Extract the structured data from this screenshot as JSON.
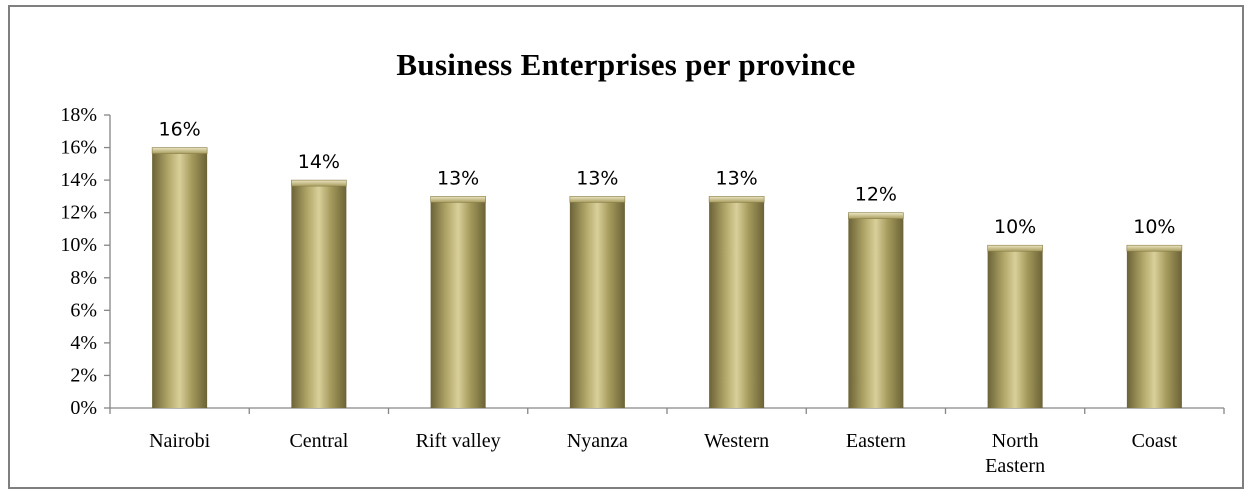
{
  "chart_data": {
    "type": "bar",
    "title": "Business Enterprises per province",
    "categories": [
      "Nairobi",
      "Central",
      "Rift valley",
      "Nyanza",
      "Western",
      "Eastern",
      "North Eastern",
      "Coast"
    ],
    "category_lines": [
      [
        "Nairobi"
      ],
      [
        "Central"
      ],
      [
        "Rift valley"
      ],
      [
        "Nyanza"
      ],
      [
        "Western"
      ],
      [
        "Eastern"
      ],
      [
        "North",
        "Eastern"
      ],
      [
        "Coast"
      ]
    ],
    "values": [
      16,
      14,
      13,
      13,
      13,
      12,
      10,
      10
    ],
    "data_labels": [
      "16%",
      "14%",
      "13%",
      "13%",
      "13%",
      "12%",
      "10%",
      "10%"
    ],
    "ylim": [
      0,
      18
    ],
    "yticks": [
      0,
      2,
      4,
      6,
      8,
      10,
      12,
      14,
      16,
      18
    ],
    "ytick_labels": [
      "0%",
      "2%",
      "4%",
      "6%",
      "8%",
      "10%",
      "12%",
      "14%",
      "16%",
      "18%"
    ],
    "xlabel": "",
    "ylabel": "",
    "grid": false,
    "legend": "none",
    "bar_color": "#938953",
    "bar_highlight": "#d8cf9a",
    "bar_shadow": "#6b6237"
  }
}
